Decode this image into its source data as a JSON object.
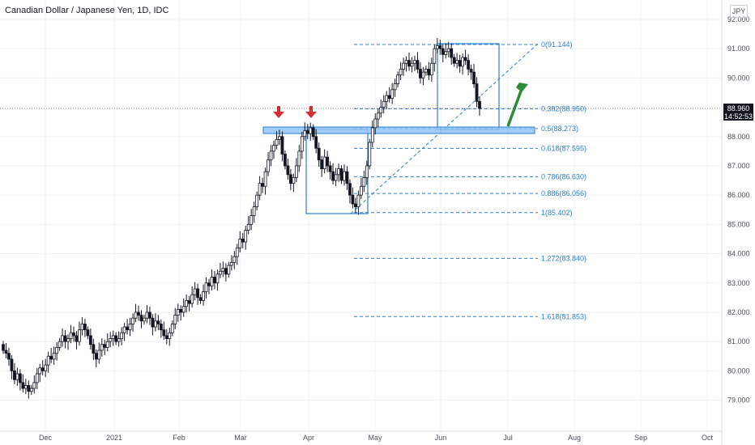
{
  "header": {
    "title": "Canadian Dollar / Japanese Yen, 1D, IDC",
    "currency_badge": "JPY"
  },
  "price_tag": {
    "price": "88.960",
    "countdown": "14:52:53"
  },
  "colors": {
    "up": "#ffffff",
    "down": "#131722",
    "fib": "#2a7fd4",
    "zone": "#90c4f5",
    "arrow_down": "#d32f2f",
    "arrow_up": "#2e8b3a"
  },
  "chart_data": {
    "type": "candlestick",
    "ylim": [
      78.5,
      92.3
    ],
    "y_ticks": [
      "92.000",
      "91.000",
      "90.000",
      "88.000",
      "87.000",
      "86.000",
      "85.000",
      "84.000",
      "83.000",
      "82.000",
      "81.000",
      "80.000",
      "79.000"
    ],
    "x_ticks": [
      "Dec",
      "2021",
      "Feb",
      "Mar",
      "Apr",
      "May",
      "Jun",
      "Jul",
      "Aug",
      "Sep",
      "Oct"
    ],
    "last_price": 88.96,
    "resistance_zone": [
      88.1,
      88.35
    ],
    "fib_levels": [
      {
        "label": "0(91.144)",
        "value": 91.144
      },
      {
        "label": "0.382(88.950)",
        "value": 88.95
      },
      {
        "label": "0.5(88.273)",
        "value": 88.273
      },
      {
        "label": "0.618(87.595)",
        "value": 87.595
      },
      {
        "label": "0.786(86.630)",
        "value": 86.63
      },
      {
        "label": "0.886(86.056)",
        "value": 86.056
      },
      {
        "label": "1(85.402)",
        "value": 85.402
      },
      {
        "label": "1.272(83.840)",
        "value": 83.84
      },
      {
        "label": "1.618(81.853)",
        "value": 81.853
      }
    ],
    "close": [
      80.7,
      80.6,
      80.4,
      80.0,
      79.7,
      79.9,
      79.6,
      79.4,
      79.5,
      79.3,
      79.4,
      79.6,
      79.9,
      80.1,
      80.0,
      80.2,
      80.5,
      80.4,
      80.6,
      80.8,
      81.0,
      81.2,
      81.0,
      81.1,
      81.3,
      81.2,
      81.0,
      81.4,
      81.6,
      81.4,
      81.2,
      80.9,
      80.6,
      80.4,
      80.7,
      80.9,
      80.8,
      81.0,
      81.1,
      81.2,
      81.0,
      81.1,
      81.3,
      81.5,
      81.4,
      81.6,
      81.8,
      82.0,
      81.9,
      81.7,
      81.8,
      82.0,
      81.8,
      81.5,
      81.7,
      81.6,
      81.4,
      81.2,
      81.1,
      81.3,
      81.6,
      81.9,
      82.1,
      82.0,
      82.2,
      82.4,
      82.3,
      82.6,
      82.8,
      82.5,
      82.4,
      82.7,
      83.0,
      82.9,
      83.2,
      83.0,
      83.3,
      83.4,
      83.5,
      83.3,
      83.6,
      83.7,
      83.9,
      84.2,
      84.5,
      84.4,
      84.8,
      85.0,
      85.3,
      85.6,
      86.0,
      86.4,
      86.3,
      86.8,
      87.2,
      87.5,
      87.7,
      87.9,
      88.0,
      87.4,
      87.0,
      86.7,
      86.4,
      86.6,
      87.0,
      87.5,
      88.0,
      88.2,
      88.1,
      88.3,
      88.0,
      87.6,
      87.2,
      86.9,
      87.3,
      87.0,
      86.8,
      86.5,
      86.7,
      86.9,
      86.5,
      86.8,
      86.4,
      86.0,
      85.7,
      85.6,
      86.0,
      86.3,
      86.6,
      87.0,
      87.8,
      88.3,
      88.6,
      88.8,
      89.0,
      89.2,
      89.4,
      89.3,
      89.6,
      89.8,
      90.1,
      90.3,
      90.5,
      90.6,
      90.4,
      90.5,
      90.6,
      90.3,
      90.0,
      90.2,
      90.3,
      90.1,
      90.5,
      91.0,
      91.1,
      91.0,
      90.8,
      90.9,
      91.0,
      90.7,
      90.5,
      90.6,
      90.4,
      90.7,
      90.6,
      90.3,
      90.2,
      89.8,
      89.2,
      88.96
    ]
  }
}
